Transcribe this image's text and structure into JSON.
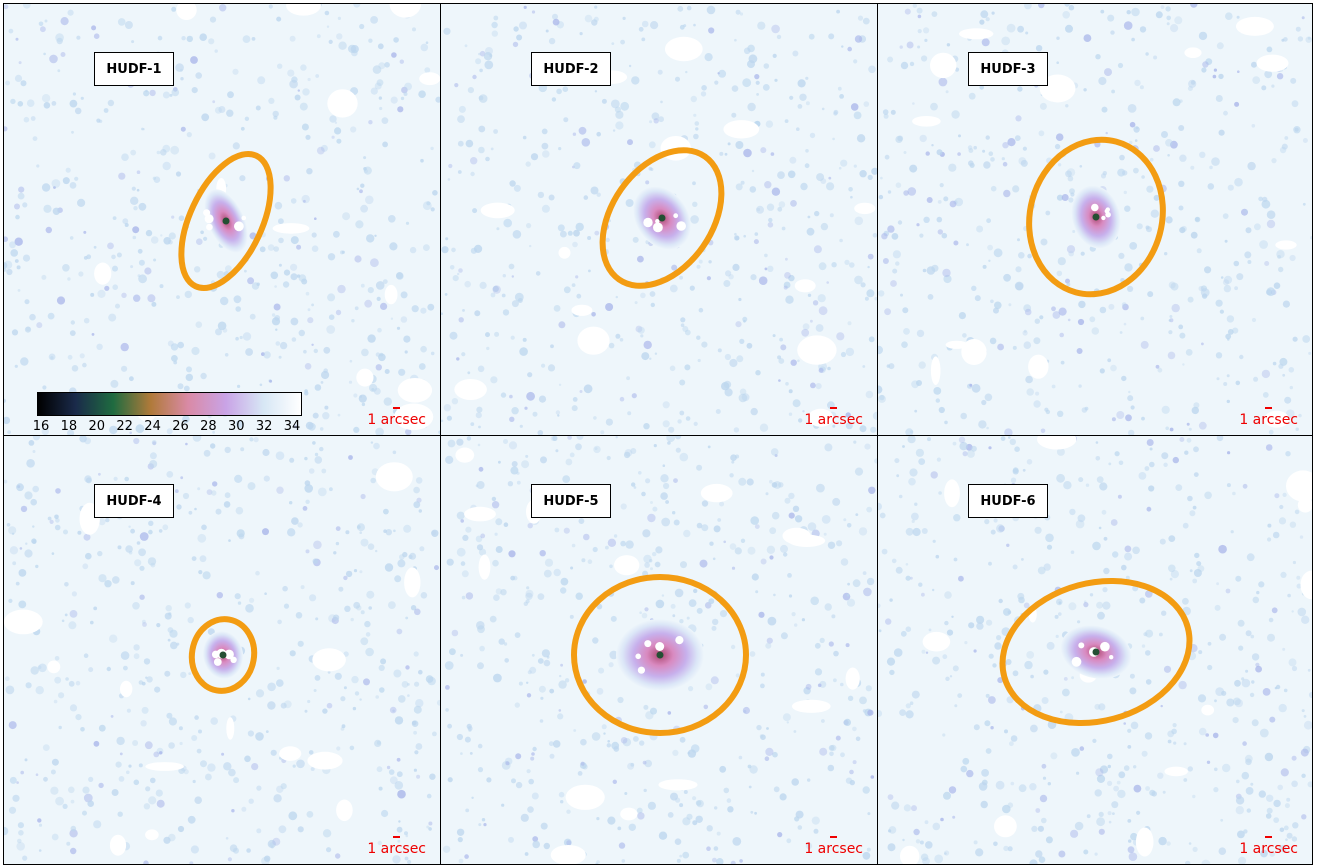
{
  "panels": [
    {
      "label": "HUDF-1",
      "scale_label": "1 arcsec",
      "ellipse_angle": 65
    },
    {
      "label": "HUDF-2",
      "scale_label": "1 arcsec",
      "ellipse_angle": 55
    },
    {
      "label": "HUDF-3",
      "scale_label": "1 arcsec",
      "ellipse_angle": 75
    },
    {
      "label": "HUDF-4",
      "scale_label": "1 arcsec",
      "ellipse_angle": 80
    },
    {
      "label": "HUDF-5",
      "scale_label": "1 arcsec",
      "ellipse_angle": 0
    },
    {
      "label": "HUDF-6",
      "scale_label": "1 arcsec",
      "ellipse_angle": 15
    }
  ],
  "colorbar": {
    "ticks": [
      "16",
      "18",
      "20",
      "22",
      "24",
      "26",
      "28",
      "30",
      "32",
      "34"
    ],
    "range": [
      16,
      35
    ],
    "colors": [
      "#000000",
      "#1a2a4a",
      "#1f6b40",
      "#b07a3a",
      "#d98aa6",
      "#c9a3e6",
      "#d7e7f5",
      "#ffffff"
    ]
  },
  "colors": {
    "ellipse": "#f39c12",
    "scale": "#ee0000",
    "background": "#eef6fb",
    "speckle": "#bcd6ee"
  }
}
